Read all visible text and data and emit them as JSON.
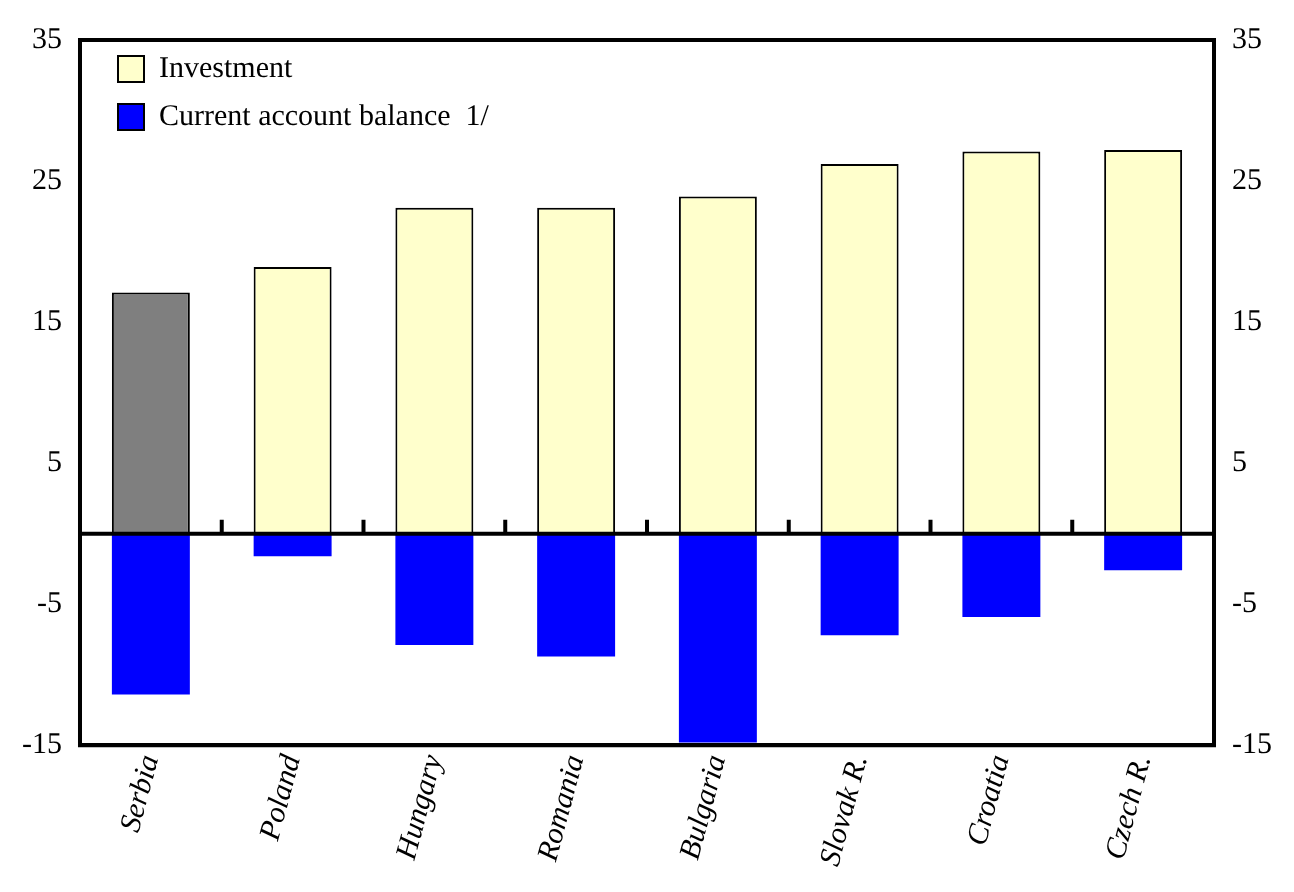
{
  "chart_data": {
    "type": "bar",
    "stacked": true,
    "categories": [
      "Serbia",
      "Poland",
      "Hungary",
      "Romania",
      "Bulgaria",
      "Slovak R.",
      "Croatia",
      "Czech R."
    ],
    "series": [
      {
        "name": "Investment",
        "color": "#ffffcc",
        "colors": [
          "#7f7f7f",
          "#ffffcc",
          "#ffffcc",
          "#ffffcc",
          "#ffffcc",
          "#ffffcc",
          "#ffffcc",
          "#ffffcc"
        ],
        "values": [
          17.1,
          18.9,
          23.1,
          23.1,
          23.9,
          26.2,
          27.1,
          27.2
        ]
      },
      {
        "name": "Current account balance  1/",
        "color": "#0000ff",
        "values": [
          -11.4,
          -1.6,
          -7.9,
          -8.7,
          -14.8,
          -7.2,
          -5.9,
          -2.6
        ]
      }
    ],
    "ylim": [
      -15,
      35
    ],
    "yticks": [
      -15,
      -5,
      5,
      15,
      25,
      35
    ],
    "y2lim": [
      -15,
      35
    ],
    "y2ticks": [
      -15,
      -5,
      5,
      15,
      25,
      35
    ],
    "grid": false,
    "legend": "top left"
  }
}
